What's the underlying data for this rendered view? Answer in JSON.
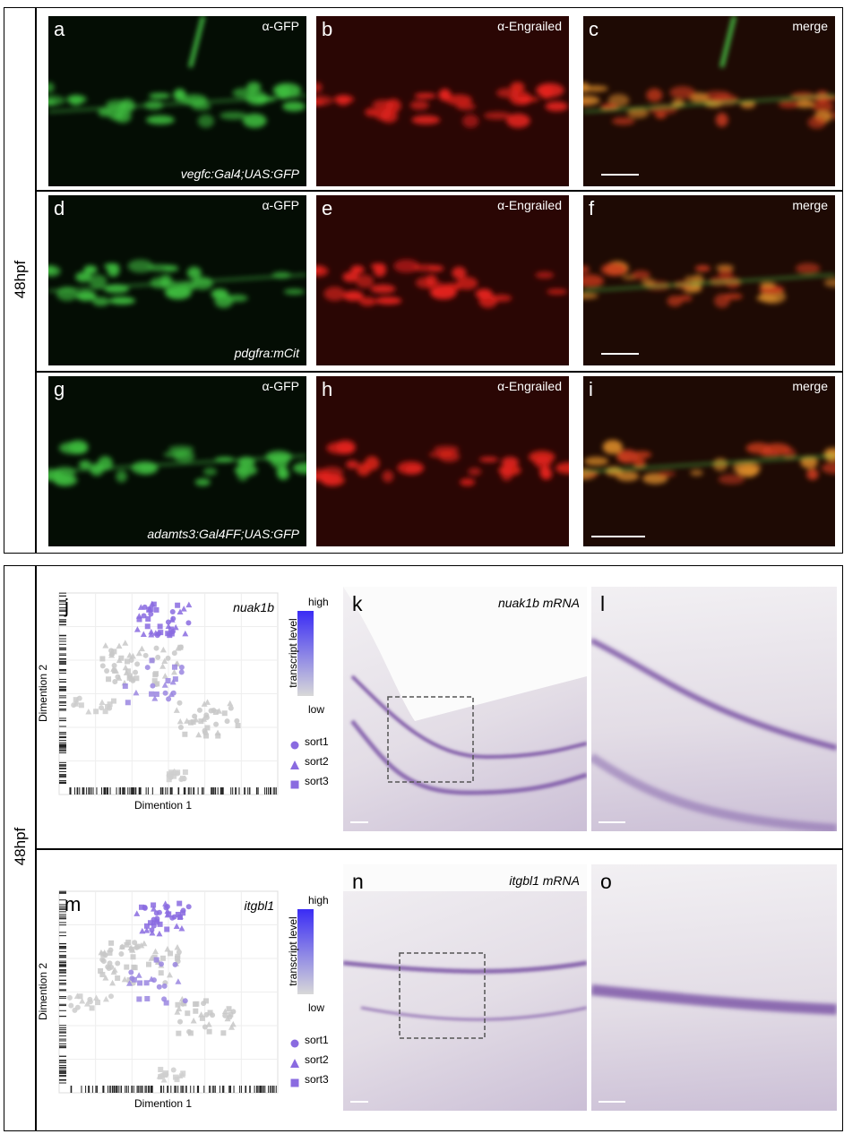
{
  "figure": {
    "top": {
      "stage": "48hpf",
      "rows": [
        {
          "panels": [
            {
              "letter": "a",
              "label": "α-GFP",
              "caption": "vegfc:Gal4;UAS:GFP"
            },
            {
              "letter": "b",
              "label": "α-Engrailed"
            },
            {
              "letter": "c",
              "label": "merge"
            }
          ]
        },
        {
          "panels": [
            {
              "letter": "d",
              "label": "α-GFP",
              "caption": "pdgfra:mCit"
            },
            {
              "letter": "e",
              "label": "α-Engrailed"
            },
            {
              "letter": "f",
              "label": "merge"
            }
          ]
        },
        {
          "panels": [
            {
              "letter": "g",
              "label": "α-GFP",
              "caption": "adamts3:Gal4FF;UAS:GFP"
            },
            {
              "letter": "h",
              "label": "α-Engrailed"
            },
            {
              "letter": "i",
              "label": "merge"
            }
          ]
        }
      ]
    },
    "bottom": {
      "stage": "48hpf",
      "rows": [
        {
          "plot": {
            "letter": "j",
            "gene": "nuak1b",
            "x_label": "Dimention 1",
            "y_label": "Dimention 2",
            "legend": {
              "high": "high",
              "title": "transcript level",
              "low": "low",
              "groups": [
                "sort1",
                "sort2",
                "sort3"
              ]
            }
          },
          "images": [
            {
              "letter": "k",
              "caption": "nuak1b mRNA"
            },
            {
              "letter": "l"
            }
          ]
        },
        {
          "plot": {
            "letter": "m",
            "gene": "itgbl1",
            "x_label": "Dimention 1",
            "y_label": "Dimention 2",
            "legend": {
              "high": "high",
              "title": "transcript level",
              "low": "low",
              "groups": [
                "sort1",
                "sort2",
                "sort3"
              ]
            }
          },
          "images": [
            {
              "letter": "n",
              "caption": "itgbl1 mRNA"
            },
            {
              "letter": "o"
            }
          ]
        }
      ]
    }
  }
}
